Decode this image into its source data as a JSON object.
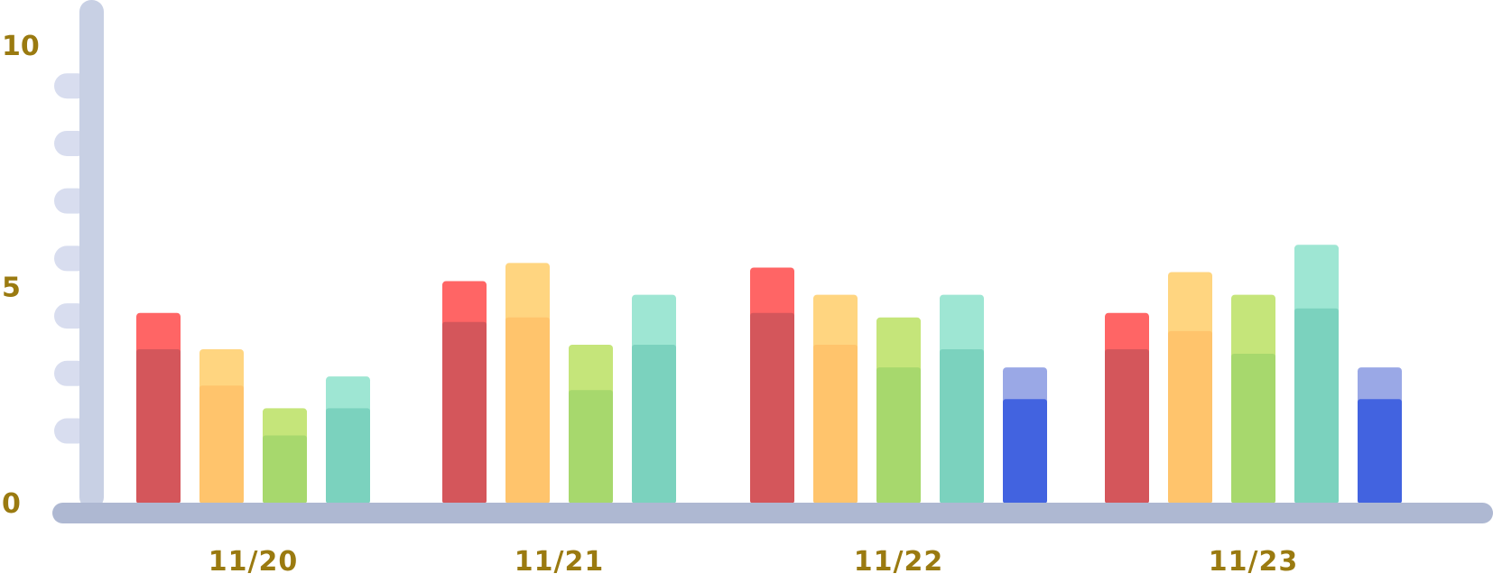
{
  "chart_data": {
    "type": "bar",
    "categories": [
      "11/20",
      "11/21",
      "11/22",
      "11/23"
    ],
    "ylim": [
      0,
      10
    ],
    "y_ticks": [
      "0",
      "5",
      "10"
    ],
    "grid": false,
    "legend": "none",
    "series_colors": [
      {
        "top": "#ff6565",
        "bottom": "#d4565b"
      },
      {
        "top": "#ffd580",
        "bottom": "#ffc46c"
      },
      {
        "top": "#c5e57a",
        "bottom": "#a7d86d"
      },
      {
        "top": "#9ee6d3",
        "bottom": "#7bd2be"
      },
      {
        "top": "#9aa8e6",
        "bottom": "#4263e0"
      }
    ],
    "groups": [
      {
        "category": "11/20",
        "bars": [
          {
            "series": 0,
            "total": 4.2,
            "lower": 3.4
          },
          {
            "series": 1,
            "total": 3.4,
            "lower": 2.6
          },
          {
            "series": 2,
            "total": 2.1,
            "lower": 1.5
          },
          {
            "series": 3,
            "total": 2.8,
            "lower": 2.1
          }
        ]
      },
      {
        "category": "11/21",
        "bars": [
          {
            "series": 0,
            "total": 4.9,
            "lower": 4.0
          },
          {
            "series": 1,
            "total": 5.3,
            "lower": 4.1
          },
          {
            "series": 2,
            "total": 3.5,
            "lower": 2.5
          },
          {
            "series": 3,
            "total": 4.6,
            "lower": 3.5
          }
        ]
      },
      {
        "category": "11/22",
        "bars": [
          {
            "series": 0,
            "total": 5.2,
            "lower": 4.2
          },
          {
            "series": 1,
            "total": 4.6,
            "lower": 3.5
          },
          {
            "series": 2,
            "total": 4.1,
            "lower": 3.0
          },
          {
            "series": 3,
            "total": 4.6,
            "lower": 3.4
          },
          {
            "series": 4,
            "total": 3.0,
            "lower": 2.3
          }
        ]
      },
      {
        "category": "11/23",
        "bars": [
          {
            "series": 0,
            "total": 4.2,
            "lower": 3.4
          },
          {
            "series": 1,
            "total": 5.1,
            "lower": 3.8
          },
          {
            "series": 2,
            "total": 4.6,
            "lower": 3.3
          },
          {
            "series": 3,
            "total": 5.7,
            "lower": 4.3
          },
          {
            "series": 4,
            "total": 3.0,
            "lower": 2.3
          }
        ]
      }
    ],
    "axis_color": "#c8d0e4",
    "baseline_color": "#aeb8d2",
    "tick_mark_color": "#d8ddef",
    "label_color": "#9a7a10"
  }
}
